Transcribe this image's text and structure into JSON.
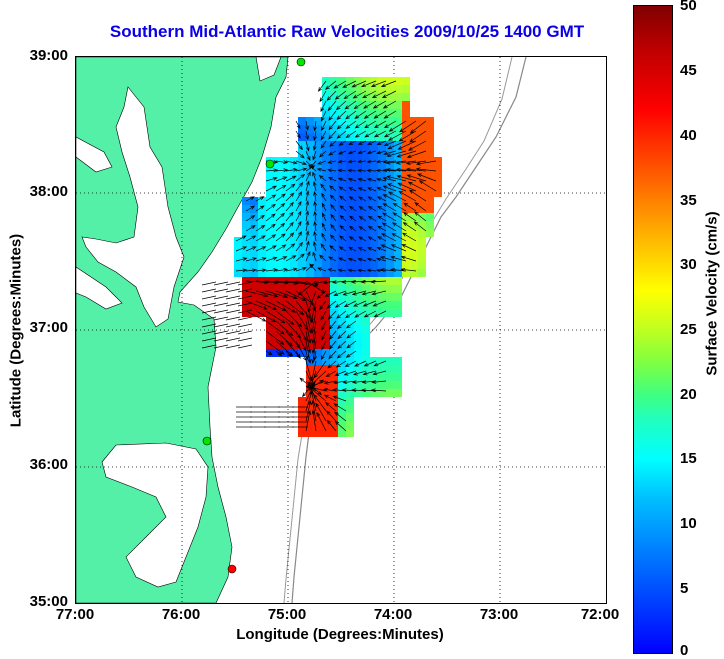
{
  "map": {
    "title": "Southern Mid-Atlantic Raw Velocities 2009/10/25 1400 GMT",
    "xlabel": "Longitude (Degrees:Minutes)",
    "ylabel": "Latitude (Degrees:Minutes)",
    "lon_ticks": [
      "77:00",
      "76:00",
      "75:00",
      "74:00",
      "73:00",
      "72:00"
    ],
    "lat_ticks": [
      "39:00",
      "38:00",
      "37:00",
      "36:00",
      "35:00"
    ],
    "lon_range": [
      -77.0,
      -72.0
    ],
    "lat_range": [
      35.0,
      39.0
    ],
    "land_color": "#55f0a8",
    "station_colors": [
      "#00e600",
      "#00e600",
      "#00e600",
      "#ff0000"
    ]
  },
  "colorbar": {
    "label": "Surface Velocity (cm/s)",
    "ticks": [
      "50",
      "45",
      "40",
      "35",
      "30",
      "25",
      "20",
      "15",
      "10",
      "5",
      "0"
    ],
    "range": [
      0,
      50
    ]
  }
}
